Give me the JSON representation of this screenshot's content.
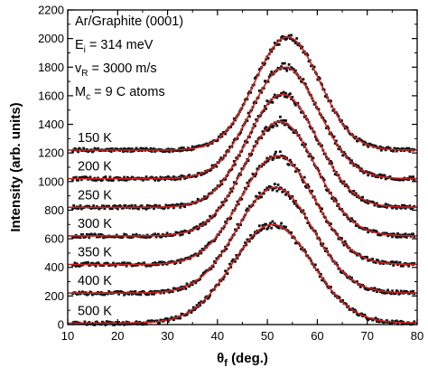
{
  "chart_data": {
    "type": "scatter",
    "xlabel_symbol": "θ",
    "xlabel_sub": "f",
    "xlabel_unit": "(deg.)",
    "ylabel": "Intensity (arb. units)",
    "xlim": [
      10,
      80
    ],
    "ylim": [
      0,
      2200
    ],
    "xticks": [
      "10",
      "20",
      "30",
      "40",
      "50",
      "60",
      "70",
      "80"
    ],
    "yticks": [
      "0",
      "200",
      "400",
      "600",
      "800",
      "1000",
      "1200",
      "1400",
      "1600",
      "1800",
      "2000",
      "2200"
    ],
    "grid": false,
    "annotation": {
      "line1": "Ar/Graphite (0001)",
      "line2_var": "E",
      "line2_sub": "i",
      "line2_val": " = 314 meV",
      "line3_var": "v",
      "line3_sub": "R",
      "line3_val": " = 3000 m/s",
      "line4_var": "M",
      "line4_sub": "c",
      "line4_val": " = 9 C atoms"
    },
    "colors": {
      "fit": "#cc2222",
      "data": "#111111"
    },
    "series": [
      {
        "label": "150 K",
        "baseline": 1220,
        "peak_x": 54.0,
        "peak_y": 2010,
        "sigma": 6.5
      },
      {
        "label": "200 K",
        "baseline": 1020,
        "peak_x": 53.5,
        "peak_y": 1800,
        "sigma": 6.8
      },
      {
        "label": "250 K",
        "baseline": 820,
        "peak_x": 53.0,
        "peak_y": 1610,
        "sigma": 7.0
      },
      {
        "label": "300 K",
        "baseline": 620,
        "peak_x": 52.5,
        "peak_y": 1420,
        "sigma": 7.2
      },
      {
        "label": "350 K",
        "baseline": 420,
        "peak_x": 52.0,
        "peak_y": 1180,
        "sigma": 7.4
      },
      {
        "label": "400 K",
        "baseline": 220,
        "peak_x": 51.5,
        "peak_y": 960,
        "sigma": 7.6
      },
      {
        "label": "500 K",
        "baseline": 10,
        "peak_x": 51.0,
        "peak_y": 700,
        "sigma": 8.0
      }
    ]
  }
}
